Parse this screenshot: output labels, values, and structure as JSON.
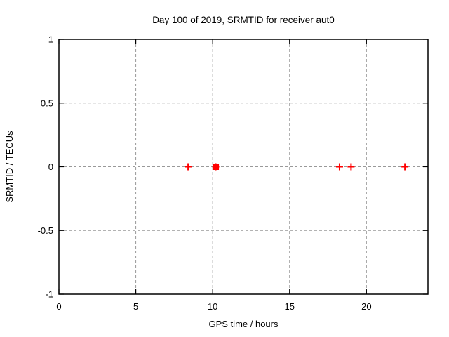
{
  "window": {
    "background": "#ffffff"
  },
  "chart_data": {
    "type": "scatter",
    "title": "Day 100 of 2019, SRMTID for receiver aut0",
    "xlabel": "GPS time / hours",
    "ylabel": "SRMTID / TECUs",
    "xlim": [
      0,
      24
    ],
    "ylim": [
      -1,
      1
    ],
    "x_ticks": [
      0,
      5,
      10,
      15,
      20
    ],
    "x_tick_labels": [
      "0",
      "5",
      "10",
      "15",
      "20"
    ],
    "y_ticks": [
      -1,
      -0.5,
      0,
      0.5,
      1
    ],
    "y_tick_labels": [
      "-1",
      "-0.5",
      "0",
      "0.5",
      "1"
    ],
    "grid": true,
    "legend": "none",
    "colors": {
      "grid": "#999999",
      "border": "#000000",
      "marker": "#ff0000",
      "text": "#000000"
    },
    "series": [
      {
        "name": "srmtid-points",
        "marker": "plus",
        "color": "#ff0000",
        "x": [
          8.4,
          10.2,
          18.25,
          19.0,
          22.5
        ],
        "y": [
          0,
          0,
          0,
          0,
          0
        ]
      },
      {
        "name": "srmtid-highlight",
        "marker": "filled-square",
        "color": "#ff0000",
        "x": [
          10.2
        ],
        "y": [
          0
        ]
      }
    ]
  }
}
